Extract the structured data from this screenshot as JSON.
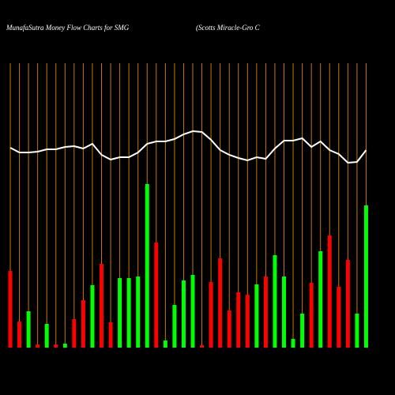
{
  "chart_data": {
    "type": "bar_line",
    "title": "MunafaSutra  Money Flow  Charts for SMG",
    "subtitle": "(Scotts Miracle-Gro  C",
    "ylim": [
      0,
      360
    ],
    "grid_color": "#c87800",
    "series": [
      {
        "kind": "bar",
        "values": [
          97,
          33,
          46,
          4,
          30,
          4,
          5,
          36,
          60,
          79,
          106,
          32,
          88,
          88,
          90,
          207,
          133,
          9,
          54,
          85,
          92,
          3,
          83,
          113,
          47,
          70,
          67,
          80,
          90,
          117,
          90,
          11,
          43,
          82,
          122,
          142,
          77,
          111,
          43,
          180
        ],
        "colors": [
          "#ff0000",
          "#ff0000",
          "#00ff00",
          "#ff0000",
          "#00ff00",
          "#ff0000",
          "#00ff00",
          "#ff0000",
          "#ff0000",
          "#00ff00",
          "#ff0000",
          "#ff0000",
          "#00ff00",
          "#00ff00",
          "#00ff00",
          "#00ff00",
          "#ff0000",
          "#00ff00",
          "#00ff00",
          "#00ff00",
          "#00ff00",
          "#ff0000",
          "#ff0000",
          "#ff0000",
          "#ff0000",
          "#ff0000",
          "#ff0000",
          "#00ff00",
          "#ff0000",
          "#00ff00",
          "#00ff00",
          "#00ff00",
          "#00ff00",
          "#ff0000",
          "#00ff00",
          "#ff0000",
          "#ff0000",
          "#ff0000",
          "#00ff00",
          "#00ff00"
        ]
      },
      {
        "kind": "line",
        "color": "#ffffff",
        "values": [
          253,
          247,
          247,
          248,
          251,
          251,
          254,
          255,
          252,
          258,
          244,
          238,
          241,
          241,
          247,
          258,
          261,
          261,
          264,
          270,
          274,
          273,
          263,
          250,
          244,
          240,
          237,
          241,
          239,
          252,
          262,
          262,
          265,
          254,
          261,
          250,
          245,
          234,
          235,
          250
        ]
      }
    ]
  }
}
